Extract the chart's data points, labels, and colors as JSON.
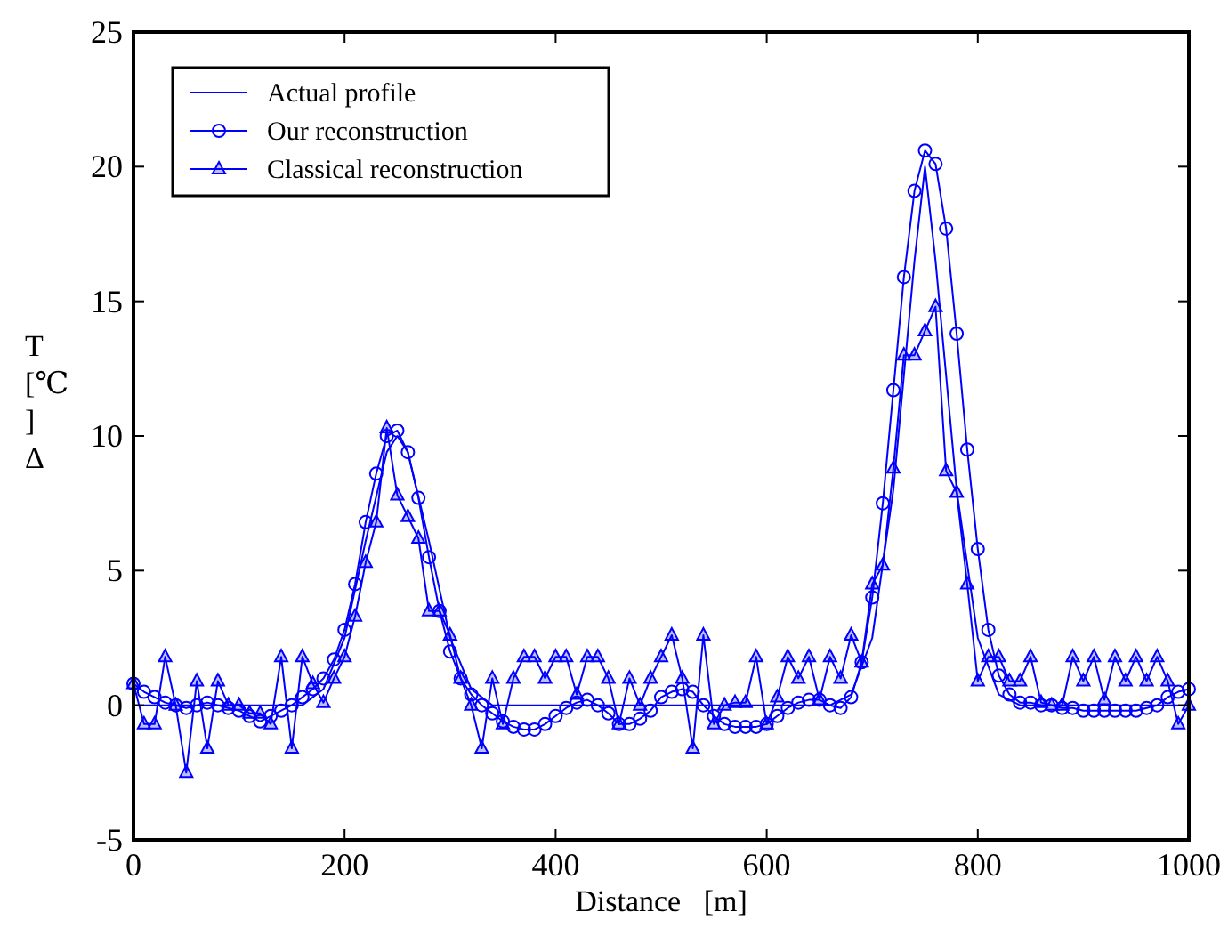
{
  "chart_data": {
    "type": "line",
    "xlabel": "Distance   [m]",
    "ylabel": "T [℃ ] Δ",
    "xlim": [
      0,
      1000
    ],
    "xticks": [
      0,
      200,
      400,
      600,
      800,
      1000
    ],
    "ylim": [
      -5,
      25
    ],
    "yticks": [
      -5,
      0,
      5,
      10,
      15,
      20,
      25
    ],
    "grid": false,
    "legend": "top left",
    "series": [
      {
        "name": "Actual profile",
        "color": "#0000ff",
        "marker": "none",
        "x": [
          0,
          160,
          180,
          200,
          220,
          240,
          250,
          260,
          280,
          300,
          320,
          340,
          660,
          680,
          700,
          720,
          740,
          750,
          760,
          780,
          800,
          820,
          840,
          1000
        ],
        "values": [
          0,
          0,
          0.6,
          2.5,
          6.1,
          9.4,
          10,
          9.4,
          6.1,
          2.5,
          0.6,
          0,
          0,
          0.4,
          2.5,
          8,
          16.5,
          20,
          16.5,
          8,
          2.5,
          0.4,
          0,
          0
        ]
      },
      {
        "name": "Our reconstruction",
        "color": "#0000ff",
        "marker": "circle",
        "x": [
          0,
          10,
          20,
          30,
          40,
          50,
          60,
          70,
          80,
          90,
          100,
          110,
          120,
          130,
          140,
          150,
          160,
          170,
          180,
          190,
          200,
          210,
          220,
          230,
          240,
          250,
          260,
          270,
          280,
          290,
          300,
          310,
          320,
          330,
          340,
          350,
          360,
          370,
          380,
          390,
          400,
          410,
          420,
          430,
          440,
          450,
          460,
          470,
          480,
          490,
          500,
          510,
          520,
          530,
          540,
          550,
          560,
          570,
          580,
          590,
          600,
          610,
          620,
          630,
          640,
          650,
          660,
          670,
          680,
          690,
          700,
          710,
          720,
          730,
          740,
          750,
          760,
          770,
          780,
          790,
          800,
          810,
          820,
          830,
          840,
          850,
          860,
          870,
          880,
          890,
          900,
          910,
          920,
          930,
          940,
          950,
          960,
          970,
          980,
          990,
          1000
        ],
        "values": [
          0.8,
          0.5,
          0.3,
          0.1,
          0,
          -0.1,
          0,
          0.1,
          0,
          -0.1,
          -0.2,
          -0.4,
          -0.6,
          -0.4,
          -0.2,
          0,
          0.3,
          0.6,
          1,
          1.7,
          2.8,
          4.5,
          6.8,
          8.6,
          10,
          10.2,
          9.4,
          7.7,
          5.5,
          3.5,
          2,
          1,
          0.4,
          0,
          -0.3,
          -0.6,
          -0.8,
          -0.9,
          -0.9,
          -0.7,
          -0.4,
          -0.1,
          0.1,
          0.2,
          0,
          -0.3,
          -0.7,
          -0.7,
          -0.5,
          -0.2,
          0.3,
          0.5,
          0.6,
          0.5,
          0,
          -0.4,
          -0.7,
          -0.8,
          -0.8,
          -0.8,
          -0.7,
          -0.4,
          -0.1,
          0.1,
          0.2,
          0.2,
          0,
          -0.1,
          0.3,
          1.6,
          4,
          7.5,
          11.7,
          15.9,
          19.1,
          20.6,
          20.1,
          17.7,
          13.8,
          9.5,
          5.8,
          2.8,
          1.1,
          0.4,
          0.1,
          0.1,
          0,
          0,
          -0.1,
          -0.1,
          -0.2,
          -0.2,
          -0.2,
          -0.2,
          -0.2,
          -0.2,
          -0.1,
          0,
          0.3,
          0.5,
          0.6
        ]
      },
      {
        "name": "Classical reconstruction",
        "color": "#0000ff",
        "marker": "triangle",
        "x": [
          0,
          10,
          20,
          30,
          40,
          50,
          60,
          70,
          80,
          90,
          100,
          110,
          120,
          130,
          140,
          150,
          160,
          170,
          180,
          190,
          200,
          210,
          220,
          230,
          240,
          250,
          260,
          270,
          280,
          290,
          300,
          310,
          320,
          330,
          340,
          350,
          360,
          370,
          380,
          390,
          400,
          410,
          420,
          430,
          440,
          450,
          460,
          470,
          480,
          490,
          500,
          510,
          520,
          530,
          540,
          550,
          560,
          570,
          580,
          590,
          600,
          610,
          620,
          630,
          640,
          650,
          660,
          670,
          680,
          690,
          700,
          710,
          720,
          730,
          740,
          750,
          760,
          770,
          780,
          790,
          800,
          810,
          820,
          830,
          840,
          850,
          860,
          870,
          880,
          890,
          900,
          910,
          920,
          930,
          940,
          950,
          960,
          970,
          980,
          990,
          1000
        ],
        "values": [
          0.8,
          -0.7,
          -0.7,
          1.8,
          0,
          -2.5,
          0.9,
          -1.6,
          0.9,
          0,
          0,
          -0.3,
          -0.3,
          -0.7,
          1.8,
          -1.6,
          1.8,
          0.8,
          0.1,
          1,
          1.8,
          3.3,
          5.3,
          6.8,
          10.3,
          7.8,
          7,
          6.2,
          3.5,
          3.5,
          2.6,
          1,
          0,
          -1.6,
          1,
          -0.7,
          1,
          1.8,
          1.8,
          1,
          1.8,
          1.8,
          0.4,
          1.8,
          1.8,
          1,
          -0.7,
          1,
          0,
          1,
          1.8,
          2.6,
          1,
          -1.6,
          2.6,
          -0.7,
          0,
          0.1,
          0.1,
          1.8,
          -0.7,
          0.3,
          1.8,
          1,
          1.8,
          0.2,
          1.8,
          1,
          2.6,
          1.6,
          4.5,
          5.2,
          8.8,
          13,
          13,
          13.9,
          14.8,
          8.7,
          7.9,
          4.5,
          0.9,
          1.8,
          1.8,
          0.9,
          0.9,
          1.8,
          0.1,
          0,
          0,
          1.8,
          0.9,
          1.8,
          0.2,
          1.8,
          0.9,
          1.8,
          0.9,
          1.8,
          0.9,
          -0.7,
          0
        ]
      }
    ]
  }
}
